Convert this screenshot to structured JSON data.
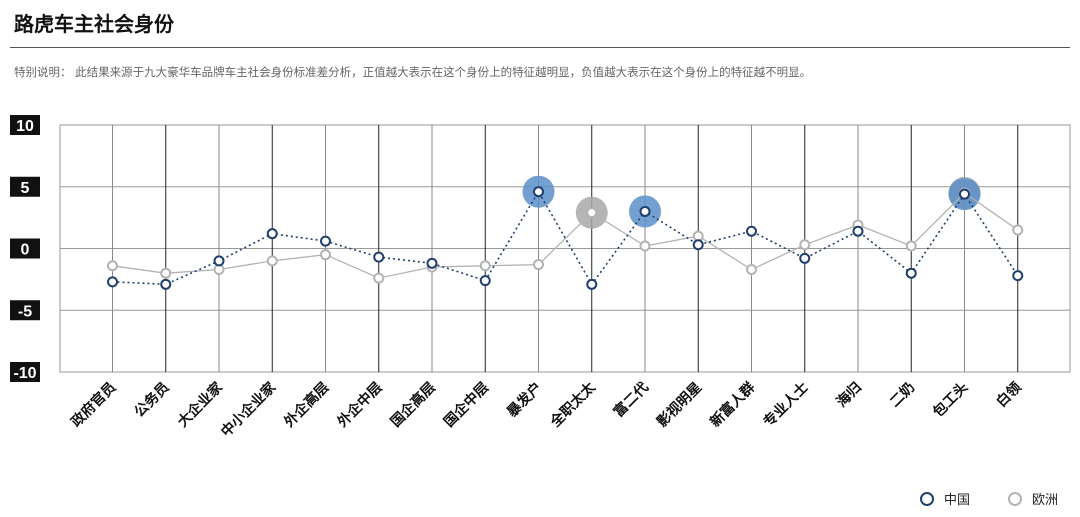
{
  "header": {
    "title": "路虎车主社会身份",
    "note": "特别说明： 此结果来源于九大豪华车品牌车主社会身份标准差分析，正值越大表示在这个身份上的特征越明显，负值越大表示在这个身份上的特征越不明显。"
  },
  "legend": {
    "china": "中国",
    "europe": "欧洲"
  },
  "colors": {
    "china": "#1f3f6e",
    "europe": "#b3b3b3",
    "china_highlight": "#5b8fc9",
    "europe_highlight": "#a8a8a8",
    "grid": "#999999",
    "label_bg": "#111111"
  },
  "chart_data": {
    "type": "line",
    "title": "路虎车主社会身份",
    "categories": [
      "政府官员",
      "公务员",
      "大企业家",
      "中小企业家",
      "外企高层",
      "外企中层",
      "国企高层",
      "国企中层",
      "暴发户",
      "全职太太",
      "富二代",
      "影视明星",
      "新富人群",
      "专业人士",
      "海归",
      "二奶",
      "包工头",
      "白领"
    ],
    "ylim": [
      -10,
      10
    ],
    "yticks": [
      10,
      5,
      0,
      -5,
      -10
    ],
    "grid": true,
    "legend_position": "bottom-right",
    "series": [
      {
        "name": "中国",
        "values": [
          -2.7,
          -2.9,
          -1.0,
          1.2,
          0.6,
          -0.7,
          -1.2,
          -2.6,
          4.6,
          -2.9,
          3.0,
          0.3,
          1.4,
          -0.8,
          1.4,
          -2.0,
          4.4,
          -2.2
        ],
        "highlight": [
          8,
          10,
          16
        ]
      },
      {
        "name": "欧洲",
        "values": [
          -1.4,
          -2.0,
          -1.7,
          -1.0,
          -0.5,
          -2.4,
          -1.5,
          -1.4,
          -1.3,
          2.9,
          0.2,
          1.0,
          -1.7,
          0.3,
          1.9,
          0.2,
          4.5,
          1.5
        ],
        "highlight": [
          9,
          16
        ]
      }
    ]
  }
}
